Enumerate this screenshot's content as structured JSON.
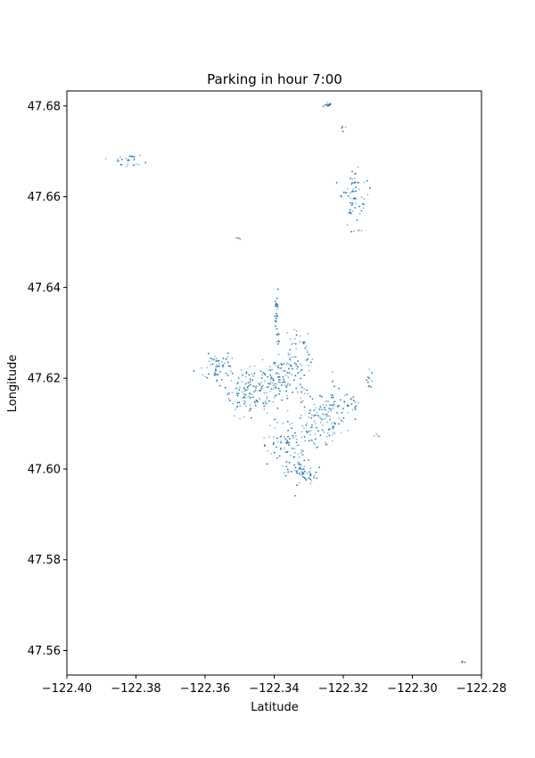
{
  "chart_data": {
    "type": "scatter",
    "title": "Parking in hour 7:00",
    "xlabel": "Latitude",
    "ylabel": "Longitude",
    "xlim": [
      -122.4,
      -122.28
    ],
    "ylim": [
      47.5546,
      47.6833
    ],
    "xticks": [
      -122.4,
      -122.38,
      -122.36,
      -122.34,
      -122.32,
      -122.3,
      -122.28
    ],
    "xtick_labels": [
      "−122.40",
      "−122.38",
      "−122.36",
      "−122.34",
      "−122.32",
      "−122.30",
      "−122.28"
    ],
    "yticks": [
      47.56,
      47.58,
      47.6,
      47.62,
      47.64,
      47.66,
      47.68
    ],
    "ytick_labels": [
      "47.56",
      "47.58",
      "47.60",
      "47.62",
      "47.64",
      "47.66",
      "47.68"
    ],
    "grid": false,
    "marker_color": "#1f77b4",
    "marker": "small-dot",
    "clusters": [
      {
        "x": -122.3835,
        "y": 47.6683,
        "sx": 0.003,
        "sy": 0.0008,
        "n": 26,
        "dense": 0.6
      },
      {
        "x": -122.3245,
        "y": 47.6802,
        "sx": 0.0006,
        "sy": 0.0003,
        "n": 12,
        "dense": 0.8
      },
      {
        "x": -122.32,
        "y": 47.6752,
        "sx": 0.0004,
        "sy": 0.0004,
        "n": 4,
        "dense": 0.5
      },
      {
        "x": -122.3165,
        "y": 47.66,
        "sx": 0.0017,
        "sy": 0.003,
        "n": 60,
        "dense": 0.6
      },
      {
        "x": -122.3165,
        "y": 47.6525,
        "sx": 0.0012,
        "sy": 0.0002,
        "n": 4,
        "dense": 0.7
      },
      {
        "x": -122.3505,
        "y": 47.6508,
        "sx": 0.001,
        "sy": 0.0002,
        "n": 5,
        "dense": 0.2
      },
      {
        "x": -122.339,
        "y": 47.632,
        "sx": 0.0003,
        "sy": 0.004,
        "n": 22,
        "dense": 0.8
      },
      {
        "x": -122.356,
        "y": 47.6225,
        "sx": 0.0025,
        "sy": 0.0015,
        "n": 55,
        "dense": 0.5
      },
      {
        "x": -122.347,
        "y": 47.6165,
        "sx": 0.004,
        "sy": 0.0025,
        "n": 130,
        "dense": 0.5
      },
      {
        "x": -122.337,
        "y": 47.62,
        "sx": 0.0035,
        "sy": 0.0025,
        "n": 110,
        "dense": 0.45
      },
      {
        "x": -122.333,
        "y": 47.6265,
        "sx": 0.002,
        "sy": 0.002,
        "n": 40,
        "dense": 0.5
      },
      {
        "x": -122.325,
        "y": 47.612,
        "sx": 0.0035,
        "sy": 0.0025,
        "n": 95,
        "dense": 0.4
      },
      {
        "x": -122.318,
        "y": 47.6145,
        "sx": 0.0015,
        "sy": 0.001,
        "n": 22,
        "dense": 0.6
      },
      {
        "x": -122.3365,
        "y": 47.6055,
        "sx": 0.003,
        "sy": 0.0025,
        "n": 70,
        "dense": 0.45
      },
      {
        "x": -122.3325,
        "y": 47.6,
        "sx": 0.002,
        "sy": 0.0015,
        "n": 50,
        "dense": 0.6
      },
      {
        "x": -122.328,
        "y": 47.608,
        "sx": 0.002,
        "sy": 0.002,
        "n": 40,
        "dense": 0.4
      },
      {
        "x": -122.3395,
        "y": 47.6345,
        "sx": 0.0002,
        "sy": 0.0015,
        "n": 10,
        "dense": 0.9
      },
      {
        "x": -122.323,
        "y": 47.619,
        "sx": 0.0003,
        "sy": 0.002,
        "n": 8,
        "dense": 0.7
      },
      {
        "x": -122.3125,
        "y": 47.62,
        "sx": 0.0005,
        "sy": 0.0015,
        "n": 10,
        "dense": 0.7
      },
      {
        "x": -122.3105,
        "y": 47.6075,
        "sx": 0.0005,
        "sy": 0.0004,
        "n": 4,
        "dense": 0.3
      },
      {
        "x": -122.285,
        "y": 47.5575,
        "sx": 0.0006,
        "sy": 0.0002,
        "n": 4,
        "dense": 0.7
      },
      {
        "x": -122.334,
        "y": 47.594,
        "sx": 0.0002,
        "sy": 0.0002,
        "n": 1,
        "dense": 0.8
      },
      {
        "x": -122.329,
        "y": 47.5975,
        "sx": 0.0012,
        "sy": 0.0005,
        "n": 8,
        "dense": 0.5
      }
    ]
  }
}
